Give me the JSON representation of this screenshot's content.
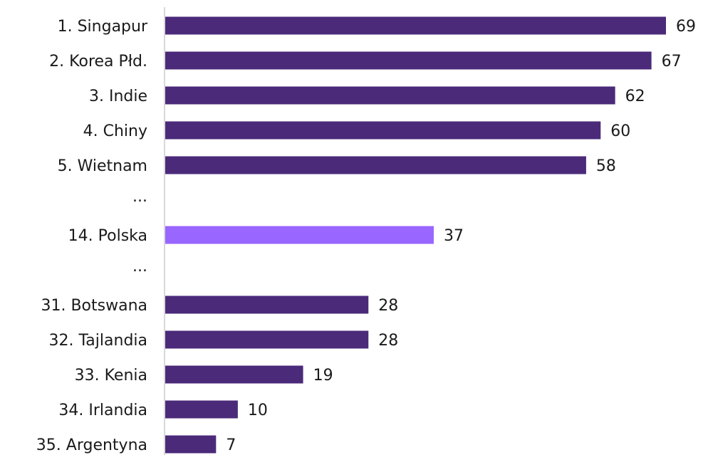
{
  "chart_data": {
    "type": "bar",
    "orientation": "horizontal",
    "title": "",
    "xlabel": "",
    "ylabel": "",
    "grid": false,
    "legend": "none",
    "colors": {
      "default": "#4b2a7a",
      "highlight": "#9966ff",
      "axis": "#d9d9d9",
      "text": "#1a1a1a"
    },
    "xlim": [
      0,
      69
    ],
    "rows": [
      {
        "category": "1. Singapur",
        "value": 69,
        "highlight": false
      },
      {
        "category": "2. Korea Płd.",
        "value": 67,
        "highlight": false
      },
      {
        "category": "3. Indie",
        "value": 62,
        "highlight": false
      },
      {
        "category": "4. Chiny",
        "value": 60,
        "highlight": false
      },
      {
        "category": "5. Wietnam",
        "value": 58,
        "highlight": false
      },
      {
        "category": "...",
        "value": null,
        "highlight": false
      },
      {
        "category": "14. Polska",
        "value": 37,
        "highlight": true
      },
      {
        "category": "...",
        "value": null,
        "highlight": false
      },
      {
        "category": "31. Botswana",
        "value": 28,
        "highlight": false
      },
      {
        "category": "32. Tajlandia",
        "value": 28,
        "highlight": false
      },
      {
        "category": "33. Kenia",
        "value": 19,
        "highlight": false
      },
      {
        "category": "34. Irlandia",
        "value": 10,
        "highlight": false
      },
      {
        "category": "35. Argentyna",
        "value": 7,
        "highlight": false
      }
    ]
  }
}
